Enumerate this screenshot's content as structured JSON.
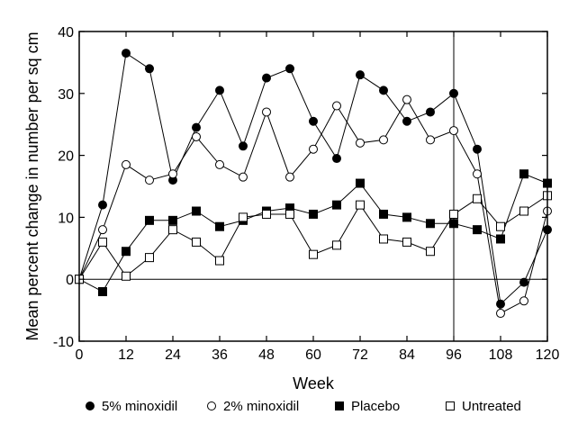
{
  "chart_data": {
    "type": "line",
    "title": "",
    "xlabel": "Week",
    "ylabel": "Mean percent change in number per sq cm",
    "xlim": [
      0,
      120
    ],
    "ylim": [
      -10,
      40
    ],
    "xticks": [
      0,
      12,
      24,
      36,
      48,
      60,
      72,
      84,
      96,
      108,
      120
    ],
    "yticks": [
      -10,
      0,
      10,
      20,
      30,
      40
    ],
    "reference_lines": {
      "horizontal_at_y": 0,
      "vertical_at_x": 96
    },
    "grid": false,
    "series": [
      {
        "name": "5% minoxidil",
        "marker": "filled-circle",
        "x": [
          0,
          6,
          12,
          18,
          24,
          30,
          36,
          42,
          48,
          54,
          60,
          66,
          72,
          78,
          84,
          90,
          96,
          102,
          108,
          114,
          120
        ],
        "values": [
          0,
          12,
          36.5,
          34,
          16,
          24.5,
          30.5,
          21.5,
          32.5,
          34,
          25.5,
          19.5,
          33,
          30.5,
          25.5,
          27,
          30,
          21,
          -4,
          -0.5,
          8
        ]
      },
      {
        "name": "2% minoxidil",
        "marker": "open-circle",
        "x": [
          0,
          6,
          12,
          18,
          24,
          30,
          36,
          42,
          48,
          54,
          60,
          66,
          72,
          78,
          84,
          90,
          96,
          102,
          108,
          114,
          120
        ],
        "values": [
          0,
          8,
          18.5,
          16,
          17,
          23,
          18.5,
          16.5,
          27,
          16.5,
          21,
          28,
          22,
          22.5,
          29,
          22.5,
          24,
          17,
          -5.5,
          -3.5,
          11
        ]
      },
      {
        "name": "Placebo",
        "marker": "filled-square",
        "x": [
          0,
          6,
          12,
          18,
          24,
          30,
          36,
          42,
          48,
          54,
          60,
          66,
          72,
          78,
          84,
          90,
          96,
          102,
          108,
          114,
          120
        ],
        "values": [
          0,
          -2,
          4.5,
          9.5,
          9.5,
          11,
          8.5,
          9.5,
          11,
          11.5,
          10.5,
          12,
          15.5,
          10.5,
          10,
          9,
          9,
          8,
          6.5,
          17,
          15.5
        ]
      },
      {
        "name": "Untreated",
        "marker": "open-square",
        "x": [
          0,
          6,
          12,
          18,
          24,
          30,
          36,
          42,
          48,
          54,
          60,
          66,
          72,
          78,
          84,
          90,
          96,
          102,
          108,
          114,
          120
        ],
        "values": [
          0,
          6,
          0.5,
          3.5,
          8,
          6,
          3,
          10,
          10.5,
          10.5,
          4,
          5.5,
          12,
          6.5,
          6,
          4.5,
          10.5,
          13,
          8.5,
          11,
          13.5
        ]
      }
    ],
    "legend": {
      "placement": "bottom",
      "entries": [
        "5% minoxidil",
        "2% minoxidil",
        "Placebo",
        "Untreated"
      ]
    }
  }
}
